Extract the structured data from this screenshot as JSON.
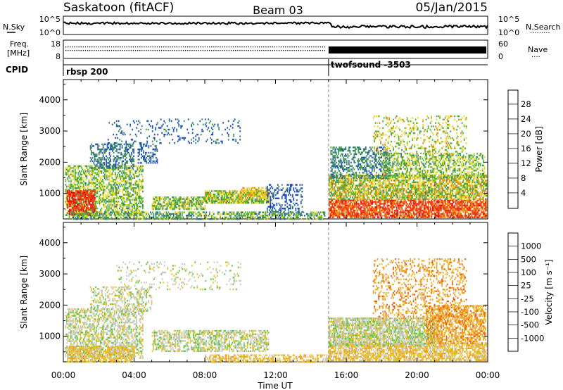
{
  "header": {
    "station": "Saskatoon (fitACF)",
    "beam": "Beam 03",
    "date": "05/Jan/2015"
  },
  "status_panels": {
    "nsky_label": "N.Sky",
    "nsky_ticks": [
      "10^5",
      "10^0"
    ],
    "nsearch_label": "N.Search",
    "nsearch_ticks": [
      "10^5",
      "10^0"
    ],
    "freq_label_1": "Freq.",
    "freq_label_2": "[MHz]",
    "freq_ticks": [
      "18",
      "8"
    ],
    "nave_label": "Nave",
    "nave_ticks": [
      "60",
      "0"
    ],
    "cpid_label": "CPID",
    "modes": [
      {
        "name": "rbsp 200",
        "start_hour": 0
      },
      {
        "name": "twofsound -3503",
        "start_hour": 15.0
      }
    ]
  },
  "chart_data": [
    {
      "type": "heatmap",
      "parameter": "power",
      "ylabel": "Slant Range [km]",
      "xlabel": "Time UT",
      "x_range_hours": [
        0,
        24
      ],
      "x_ticks": [
        "00:00",
        "04:00",
        "08:00",
        "12:00",
        "16:00",
        "20:00",
        "00:00"
      ],
      "ylim": [
        180,
        4650
      ],
      "y_ticks": [
        1000,
        2000,
        3000,
        4000
      ],
      "colorbar": {
        "label": "Power [dB]",
        "ticks": [
          "28",
          "24",
          "20",
          "16",
          "12",
          "8",
          "4"
        ],
        "range": [
          0,
          30
        ],
        "colors": [
          "#1010ff",
          "#2050c0",
          "#3c8c64",
          "#50b432",
          "#e8d820",
          "#f08c10",
          "#f04010",
          "#e81010"
        ]
      },
      "regions": [
        {
          "t": [
            0.1,
            4.5
          ],
          "r": [
            300,
            1900
          ],
          "v": 14,
          "d": 0.55,
          "noise": 10
        },
        {
          "t": [
            0.2,
            1.8
          ],
          "r": [
            320,
            1100
          ],
          "v": 26,
          "d": 0.7,
          "noise": 6
        },
        {
          "t": [
            1.5,
            4.0
          ],
          "r": [
            1800,
            2600
          ],
          "v": 8,
          "d": 0.45,
          "noise": 6
        },
        {
          "t": [
            4.2,
            5.3
          ],
          "r": [
            2000,
            2600
          ],
          "v": 7,
          "d": 0.4,
          "noise": 5
        },
        {
          "t": [
            5.0,
            8.0
          ],
          "r": [
            500,
            900
          ],
          "v": 14,
          "d": 0.65,
          "noise": 10
        },
        {
          "t": [
            8.0,
            11.6
          ],
          "r": [
            700,
            1100
          ],
          "v": 15,
          "d": 0.75,
          "noise": 10
        },
        {
          "t": [
            10.0,
            11.6
          ],
          "r": [
            900,
            1200
          ],
          "v": 18,
          "d": 0.6,
          "noise": 8
        },
        {
          "t": [
            11.5,
            13.5
          ],
          "r": [
            300,
            1300
          ],
          "v": 6,
          "d": 0.35,
          "noise": 5
        },
        {
          "t": [
            0.3,
            14.8
          ],
          "r": [
            200,
            420
          ],
          "v": 12,
          "d": 0.55,
          "noise": 12
        },
        {
          "t": [
            2.5,
            10.0
          ],
          "r": [
            2600,
            3400
          ],
          "v": 7,
          "d": 0.12,
          "noise": 5
        },
        {
          "t": [
            15.0,
            23.9
          ],
          "r": [
            250,
            800
          ],
          "v": 24,
          "d": 0.75,
          "noise": 8
        },
        {
          "t": [
            15.0,
            23.9
          ],
          "r": [
            800,
            1600
          ],
          "v": 16,
          "d": 0.7,
          "noise": 12
        },
        {
          "t": [
            15.1,
            18.5
          ],
          "r": [
            1500,
            2500
          ],
          "v": 9,
          "d": 0.45,
          "noise": 6
        },
        {
          "t": [
            18.0,
            23.8
          ],
          "r": [
            1500,
            2300
          ],
          "v": 14,
          "d": 0.45,
          "noise": 10
        },
        {
          "t": [
            17.5,
            22.8
          ],
          "r": [
            2300,
            3500
          ],
          "v": 16,
          "d": 0.22,
          "noise": 10
        }
      ]
    },
    {
      "type": "heatmap",
      "parameter": "velocity",
      "ylabel": "Slant Range [km]",
      "xlabel": "Time UT",
      "x_range_hours": [
        0,
        24
      ],
      "x_ticks": [
        "00:00",
        "04:00",
        "08:00",
        "12:00",
        "16:00",
        "20:00",
        "00:00"
      ],
      "ylim": [
        180,
        4650
      ],
      "y_ticks": [
        1000,
        2000,
        3000,
        4000
      ],
      "colorbar": {
        "label": "Velocity [m s⁻¹]",
        "ticks": [
          "1000",
          "500",
          "100",
          "25",
          "-25",
          "-100",
          "-500",
          "-1000"
        ],
        "colors": [
          "#1e3cff",
          "#2a70a0",
          "#3c8c50",
          "#60c840",
          "#c8c8c0",
          "#e8c020",
          "#f0a020",
          "#f06010",
          "#e81010"
        ]
      },
      "regions": [
        {
          "t": [
            0.1,
            4.5
          ],
          "r": [
            300,
            1900
          ],
          "v": 4,
          "d": 0.5,
          "noise": 1
        },
        {
          "t": [
            0.2,
            4.0
          ],
          "r": [
            200,
            700
          ],
          "v": 5,
          "d": 0.6,
          "noise": 1
        },
        {
          "t": [
            1.5,
            5.0
          ],
          "r": [
            1800,
            2600
          ],
          "v": 4,
          "d": 0.35,
          "noise": 1
        },
        {
          "t": [
            5.0,
            11.6
          ],
          "r": [
            500,
            1200
          ],
          "v": 4,
          "d": 0.55,
          "noise": 1
        },
        {
          "t": [
            8.0,
            15.0
          ],
          "r": [
            200,
            420
          ],
          "v": 5,
          "d": 0.5,
          "noise": 1
        },
        {
          "t": [
            3.0,
            10.0
          ],
          "r": [
            2500,
            3400
          ],
          "v": 4,
          "d": 0.12,
          "noise": 1
        },
        {
          "t": [
            15.0,
            23.9
          ],
          "r": [
            250,
            800
          ],
          "v": 5,
          "d": 0.7,
          "noise": 1
        },
        {
          "t": [
            15.0,
            21.0
          ],
          "r": [
            700,
            1600
          ],
          "v": 4,
          "d": 0.75,
          "noise": 1
        },
        {
          "t": [
            20.5,
            23.9
          ],
          "r": [
            800,
            2000
          ],
          "v": 6,
          "d": 0.6,
          "noise": 1
        },
        {
          "t": [
            17.5,
            22.8
          ],
          "r": [
            1600,
            3500
          ],
          "v": 6,
          "d": 0.25,
          "noise": 1
        }
      ]
    }
  ]
}
